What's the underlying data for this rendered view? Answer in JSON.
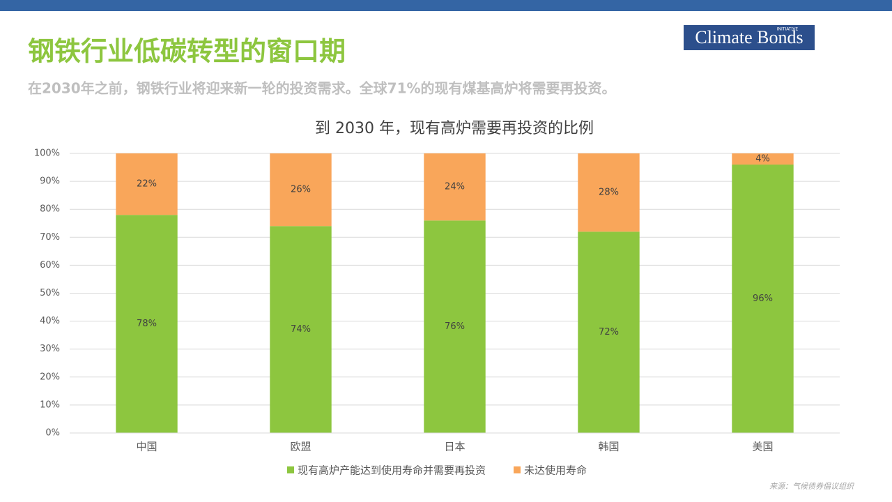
{
  "header": {
    "title": "钢铁行业低碳转型的窗口期",
    "subtitle": "在2030年之前，钢铁行业将迎来新一轮的投资需求。全球71%的现有煤基高炉将需要再投资。",
    "logo": "Climate Bonds",
    "logo_small": "INITIATIVE"
  },
  "source": "来源：气候债券倡议组织",
  "chart_data": {
    "type": "bar",
    "stacked": true,
    "title": "到 2030 年，现有高炉需要再投资的比例",
    "categories": [
      "中国",
      "欧盟",
      "日本",
      "韩国",
      "美国"
    ],
    "series": [
      {
        "name": "现有高炉产能达到使用寿命并需要再投资",
        "color": "#8dc63f",
        "values": [
          78,
          74,
          76,
          72,
          96
        ],
        "value_labels": [
          "78%",
          "74%",
          "76%",
          "72%",
          "96%"
        ]
      },
      {
        "name": "未达使用寿命",
        "color": "#f9a65a",
        "values": [
          22,
          26,
          24,
          28,
          4
        ],
        "value_labels": [
          "22%",
          "26%",
          "24%",
          "28%",
          "4%"
        ]
      }
    ],
    "ylim": [
      0,
      100
    ],
    "yticks": [
      {
        "value": 0,
        "label": "0%"
      },
      {
        "value": 10,
        "label": "10%"
      },
      {
        "value": 20,
        "label": "20%"
      },
      {
        "value": 30,
        "label": "30%"
      },
      {
        "value": 40,
        "label": "40%"
      },
      {
        "value": 50,
        "label": "50%"
      },
      {
        "value": 60,
        "label": "60%"
      },
      {
        "value": 70,
        "label": "70%"
      },
      {
        "value": 80,
        "label": "80%"
      },
      {
        "value": 90,
        "label": "90%"
      },
      {
        "value": 100,
        "label": "100%"
      }
    ],
    "grid": true,
    "legend": "bottom"
  }
}
